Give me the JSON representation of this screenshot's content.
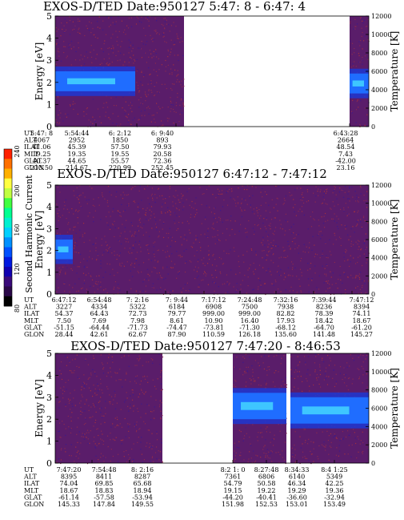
{
  "colorbar": {
    "label": "Second Harmonic Current",
    "ticks": [
      "80",
      "120",
      "160",
      "200",
      "240"
    ],
    "colors": [
      "#ff2000",
      "#ff7000",
      "#ffb000",
      "#ffff40",
      "#c0ff40",
      "#40ff40",
      "#00ff90",
      "#00f0d0",
      "#00d0ff",
      "#0090ff",
      "#0050ff",
      "#0018e0",
      "#1000b0",
      "#3a0a7a",
      "#2a0848",
      "#000000"
    ]
  },
  "panels": [
    {
      "title": "EXOS-D/TED   Date:950127  5:47: 8 - 6:47: 4",
      "ylabel": "Energy [eV]",
      "y2label": "Temperature [K]",
      "yticks": [
        "0",
        "1",
        "2",
        "3",
        "4",
        "5"
      ],
      "y2ticks": [
        "0",
        "2000",
        "4000",
        "6000",
        "8000",
        "10000",
        "12000"
      ],
      "table": {
        "row_labels": [
          "UT",
          "ALT",
          "ILAT",
          "MLT",
          "GLAT",
          "GLON"
        ],
        "columns": [
          {
            "UT": "5:47: 8",
            "ALT": "4067",
            "ILAT": "41.06",
            "MLT": "19.25",
            "GLAT": "40.37",
            "GLON": "213.50"
          },
          {
            "UT": "5:54:44",
            "ALT": "2952",
            "ILAT": "45.39",
            "MLT": "19.35",
            "GLAT": "44.65",
            "GLON": "214.67"
          },
          {
            "UT": "6: 2:12",
            "ALT": "1850",
            "ILAT": "57.50",
            "MLT": "19.55",
            "GLAT": "55.57",
            "GLON": "220.99"
          },
          {
            "UT": "6: 9:40",
            "ALT": "893",
            "ILAT": "79.93",
            "MLT": "20.58",
            "GLAT": "72.36",
            "GLON": "252.45"
          },
          {
            "UT": "6:43:28",
            "ALT": "2664",
            "ILAT": "48.54",
            "MLT": "7.43",
            "GLAT": "-42.00",
            "GLON": "23.16"
          }
        ]
      }
    },
    {
      "title": "EXOS-D/TED   Date:950127  6:47:12 - 7:47:12",
      "ylabel": "Energy [eV]",
      "y2label": "Temperature [K]",
      "yticks": [
        "0",
        "1",
        "2",
        "3",
        "4",
        "5"
      ],
      "y2ticks": [
        "0",
        "2000",
        "4000",
        "6000",
        "8000",
        "10000",
        "12000"
      ],
      "table": {
        "row_labels": [
          "UT",
          "ALT",
          "ILAT",
          "MLT",
          "GLAT",
          "GLON"
        ],
        "columns": [
          {
            "UT": "6:47:12",
            "ALT": "3227",
            "ILAT": "54.37",
            "MLT": "7.50",
            "GLAT": "-51.15",
            "GLON": "28.44"
          },
          {
            "UT": "6:54:48",
            "ALT": "4334",
            "ILAT": "64.43",
            "MLT": "7.69",
            "GLAT": "-64.44",
            "GLON": "42.61"
          },
          {
            "UT": "7: 2:16",
            "ALT": "5322",
            "ILAT": "72.73",
            "MLT": "7.98",
            "GLAT": "-71.73",
            "GLON": "62.67"
          },
          {
            "UT": "7: 9:44",
            "ALT": "6184",
            "ILAT": "79.77",
            "MLT": "8.61",
            "GLAT": "-74.47",
            "GLON": "87.90"
          },
          {
            "UT": "7:17:12",
            "ALT": "6908",
            "ILAT": "999.00",
            "MLT": "10.90",
            "GLAT": "-73.81",
            "GLON": "110.59"
          },
          {
            "UT": "7:24:48",
            "ALT": "7500",
            "ILAT": "999.00",
            "MLT": "16.40",
            "GLAT": "-71.30",
            "GLON": "126.18"
          },
          {
            "UT": "7:32:16",
            "ALT": "7938",
            "ILAT": "82.82",
            "MLT": "17.93",
            "GLAT": "-68.12",
            "GLON": "135.60"
          },
          {
            "UT": "7:39:44",
            "ALT": "8236",
            "ILAT": "78.39",
            "MLT": "18.42",
            "GLAT": "-64.70",
            "GLON": "141.48"
          },
          {
            "UT": "7:47:12",
            "ALT": "8394",
            "ILAT": "74.11",
            "MLT": "18.67",
            "GLAT": "-61.20",
            "GLON": "145.27"
          }
        ]
      }
    },
    {
      "title": "EXOS-D/TED   Date:950127  7:47:20 - 8:46:53",
      "ylabel": "Energy [eV]",
      "y2label": "Temperature [K]",
      "yticks": [
        "0",
        "1",
        "2",
        "3",
        "4",
        "5"
      ],
      "y2ticks": [
        "0",
        "2000",
        "4000",
        "6000",
        "8000",
        "10000",
        "12000"
      ],
      "table": {
        "row_labels": [
          "UT",
          "ALT",
          "ILAT",
          "MLT",
          "GLAT",
          "GLON"
        ],
        "columns": [
          {
            "UT": "7:47:20",
            "ALT": "8395",
            "ILAT": "74.04",
            "MLT": "18.67",
            "GLAT": "-61.14",
            "GLON": "145.33"
          },
          {
            "UT": "7:54:48",
            "ALT": "8411",
            "ILAT": "69.85",
            "MLT": "18.83",
            "GLAT": "-57.58",
            "GLON": "147.84"
          },
          {
            "UT": "8: 2:16",
            "ALT": "8287",
            "ILAT": "65.68",
            "MLT": "18.94",
            "GLAT": "-53.94",
            "GLON": "149.55"
          },
          {
            "UT": "8:2 1: 0",
            "ALT": "7361",
            "ILAT": "54.79",
            "MLT": "19.15",
            "GLAT": "-44.20",
            "GLON": "151.98"
          },
          {
            "UT": "8:27:48",
            "ALT": "6806",
            "ILAT": "50.58",
            "MLT": "19.22",
            "GLAT": "-40.41",
            "GLON": "152.53"
          },
          {
            "UT": "8:34:33",
            "ALT": "6140",
            "ILAT": "46.34",
            "MLT": "19.29",
            "GLAT": "-36.60",
            "GLON": "153.01"
          },
          {
            "UT": "8:4 1:25",
            "ALT": "5349",
            "ILAT": "42.25",
            "MLT": "19.36",
            "GLAT": "-32.94",
            "GLON": "153.49"
          }
        ]
      }
    }
  ],
  "chart_data": [
    {
      "type": "heatmap",
      "title": "EXOS-D/TED   Date:950127  5:47: 8 - 6:47: 4",
      "xlabel": "UT",
      "ylabel": "Energy [eV]",
      "y2label": "Temperature [K]",
      "ylim": [
        0,
        5
      ],
      "y2lim": [
        0,
        12000
      ],
      "x_ticks": [
        "5:47: 8",
        "5:54:44",
        "6: 2:12",
        "6: 9:40",
        "6:43:28"
      ],
      "data_segments_fraction": [
        [
          0.0,
          0.41
        ],
        [
          0.96,
          1.0
        ]
      ],
      "dominant_band_energy_ev": [
        1.6,
        2.4
      ],
      "background_level": "low (purple)",
      "band_level": "medium-high (blue/cyan)"
    },
    {
      "type": "heatmap",
      "title": "EXOS-D/TED   Date:950127  6:47:12 - 7:47:12",
      "xlabel": "UT",
      "ylabel": "Energy [eV]",
      "y2label": "Temperature [K]",
      "ylim": [
        0,
        5
      ],
      "y2lim": [
        0,
        12000
      ],
      "x_ticks": [
        "6:47:12",
        "6:54:48",
        "7: 2:16",
        "7: 9:44",
        "7:17:12",
        "7:24:48",
        "7:32:16",
        "7:39:44",
        "7:47:12"
      ],
      "data_segments_fraction": [
        [
          0.0,
          1.0
        ]
      ],
      "dominant_band_energy_ev": [
        1.6,
        2.6
      ],
      "background_level": "low (purple)",
      "band_level": "medium (blue), near start only"
    },
    {
      "type": "heatmap",
      "title": "EXOS-D/TED   Date:950127  7:47:20 - 8:46:53",
      "xlabel": "UT",
      "ylabel": "Energy [eV]",
      "y2label": "Temperature [K]",
      "ylim": [
        0,
        5
      ],
      "y2lim": [
        0,
        12000
      ],
      "x_ticks": [
        "7:47:20",
        "7:54:48",
        "8: 2:16",
        "8:2 1: 0",
        "8:27:48",
        "8:34:33",
        "8:4 1:25"
      ],
      "data_segments_fraction": [
        [
          0.0,
          0.35
        ],
        [
          0.56,
          1.0
        ]
      ],
      "dominant_band_energy_ev": [
        1.8,
        3.0
      ],
      "background_level": "low (purple)",
      "band_level": "medium-high (blue/cyan), after 8:2 1: 0"
    }
  ]
}
